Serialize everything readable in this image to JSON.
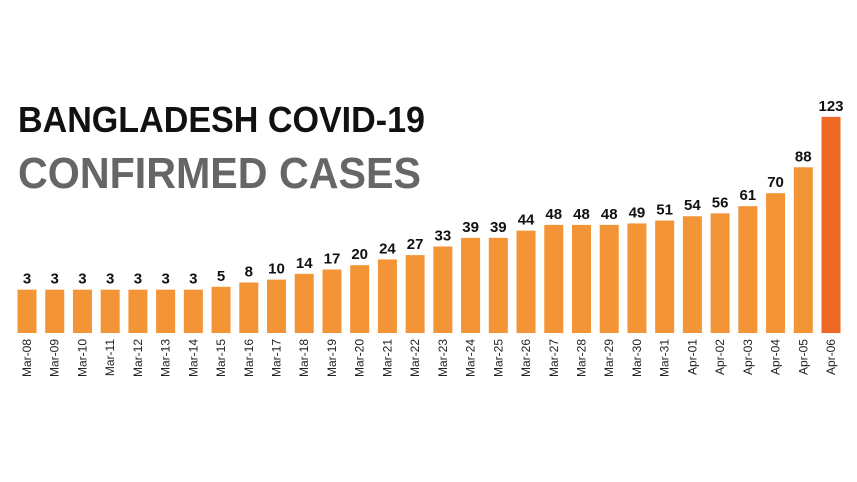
{
  "chart_data": {
    "type": "bar",
    "title": "BANGLADESH COVID-19",
    "subtitle": "CONFIRMED CASES",
    "categories": [
      "Mar-08",
      "Mar-09",
      "Mar-10",
      "Mar-11",
      "Mar-12",
      "Mar-13",
      "Mar-14",
      "Mar-15",
      "Mar-16",
      "Mar-17",
      "Mar-18",
      "Mar-19",
      "Mar-20",
      "Mar-21",
      "Mar-22",
      "Mar-23",
      "Mar-24",
      "Mar-25",
      "Mar-26",
      "Mar-27",
      "Mar-28",
      "Mar-29",
      "Mar-30",
      "Mar-31",
      "Apr-01",
      "Apr-02",
      "Apr-03",
      "Apr-04",
      "Apr-05",
      "Apr-06"
    ],
    "values": [
      3,
      3,
      3,
      3,
      3,
      3,
      3,
      5,
      8,
      10,
      14,
      17,
      20,
      24,
      27,
      33,
      39,
      39,
      44,
      48,
      48,
      48,
      49,
      51,
      54,
      56,
      61,
      70,
      88,
      123
    ],
    "colors": [
      "#f39436",
      "#f39436",
      "#f39436",
      "#f39436",
      "#f39436",
      "#f39436",
      "#f39436",
      "#f39436",
      "#f39436",
      "#f39436",
      "#f39436",
      "#f39436",
      "#f39436",
      "#f39436",
      "#f39436",
      "#f39436",
      "#f39436",
      "#f39436",
      "#f39436",
      "#f39436",
      "#f39436",
      "#f39436",
      "#f39436",
      "#f39436",
      "#f39436",
      "#f39436",
      "#f39436",
      "#f39436",
      "#f39436",
      "#ee6a24"
    ]
  }
}
